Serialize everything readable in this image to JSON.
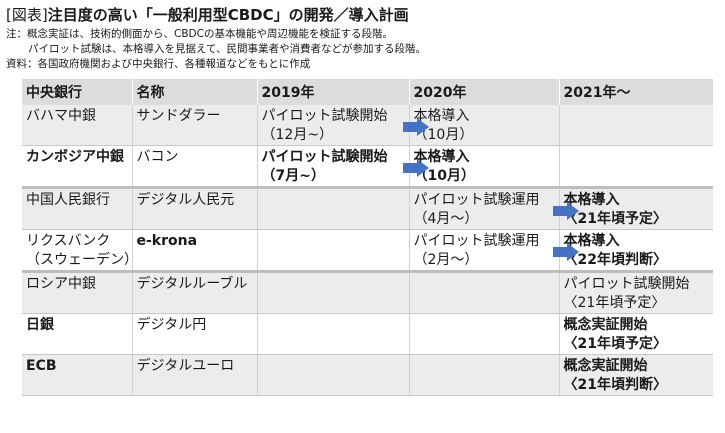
{
  "header": {
    "tag": "[図表]",
    "title": "注目度の高い「一般利用型CBDC」の開発／導入計画"
  },
  "notes": {
    "note1": "注：概念実証は、技術的側面から、CBDCの基本機能や周辺機能を検証する段階。",
    "note2": "パイロット試験は、本格導入を見据えて、民間事業者や消費者などが参加する段階。",
    "source": "資料：各国政府機関および中央銀行、各種報道などをもとに作成"
  },
  "table": {
    "columns": [
      "中央銀行",
      "名称",
      "2019年",
      "2020年",
      "2021年～"
    ],
    "rows": [
      {
        "bank": [
          "バハマ中銀"
        ],
        "name": "サンドダラー",
        "y2019": [
          "パイロット試験開始",
          "（12月~）"
        ],
        "y2020": [
          "本格導入",
          "（10月）"
        ],
        "y2021": []
      },
      {
        "bank": [
          "カンボジア中銀"
        ],
        "name": "バコン",
        "y2019": [
          "パイロット試験開始",
          "（7月~）"
        ],
        "y2020": [
          "本格導入",
          "（10月）"
        ],
        "y2021": []
      },
      {
        "bank": [
          "中国人民銀行"
        ],
        "name": "デジタル人民元",
        "y2019": [],
        "y2020": [
          "パイロット試験運用",
          "（4月～）"
        ],
        "y2021": [
          "本格導入",
          "〈21年頃予定〉"
        ]
      },
      {
        "bank": [
          "リクスバンク",
          "（スウェーデン）"
        ],
        "name": "e-krona",
        "y2019": [],
        "y2020": [
          "パイロット試験運用",
          "（2月～）"
        ],
        "y2021": [
          "本格導入",
          "〈22年頃判断〉"
        ]
      },
      {
        "bank": [
          "ロシア中銀"
        ],
        "name": "デジタルルーブル",
        "y2019": [],
        "y2020": [],
        "y2021": [
          "パイロット試験開始",
          "〈21年頃予定〉"
        ]
      },
      {
        "bank": [
          "日銀"
        ],
        "name": "デジタル円",
        "y2019": [],
        "y2020": [],
        "y2021": [
          "概念実証開始",
          "〈21年頃予定〉"
        ]
      },
      {
        "bank": [
          "ECB"
        ],
        "name": "デジタルユーロ",
        "y2019": [],
        "y2020": [],
        "y2021": [
          "概念実証開始",
          "〈21年頃判断〉"
        ]
      }
    ]
  },
  "colors": {
    "arrow": "#4472c4",
    "header_bg": "#dcdcdc",
    "row_alt_bg": "#ececec"
  }
}
